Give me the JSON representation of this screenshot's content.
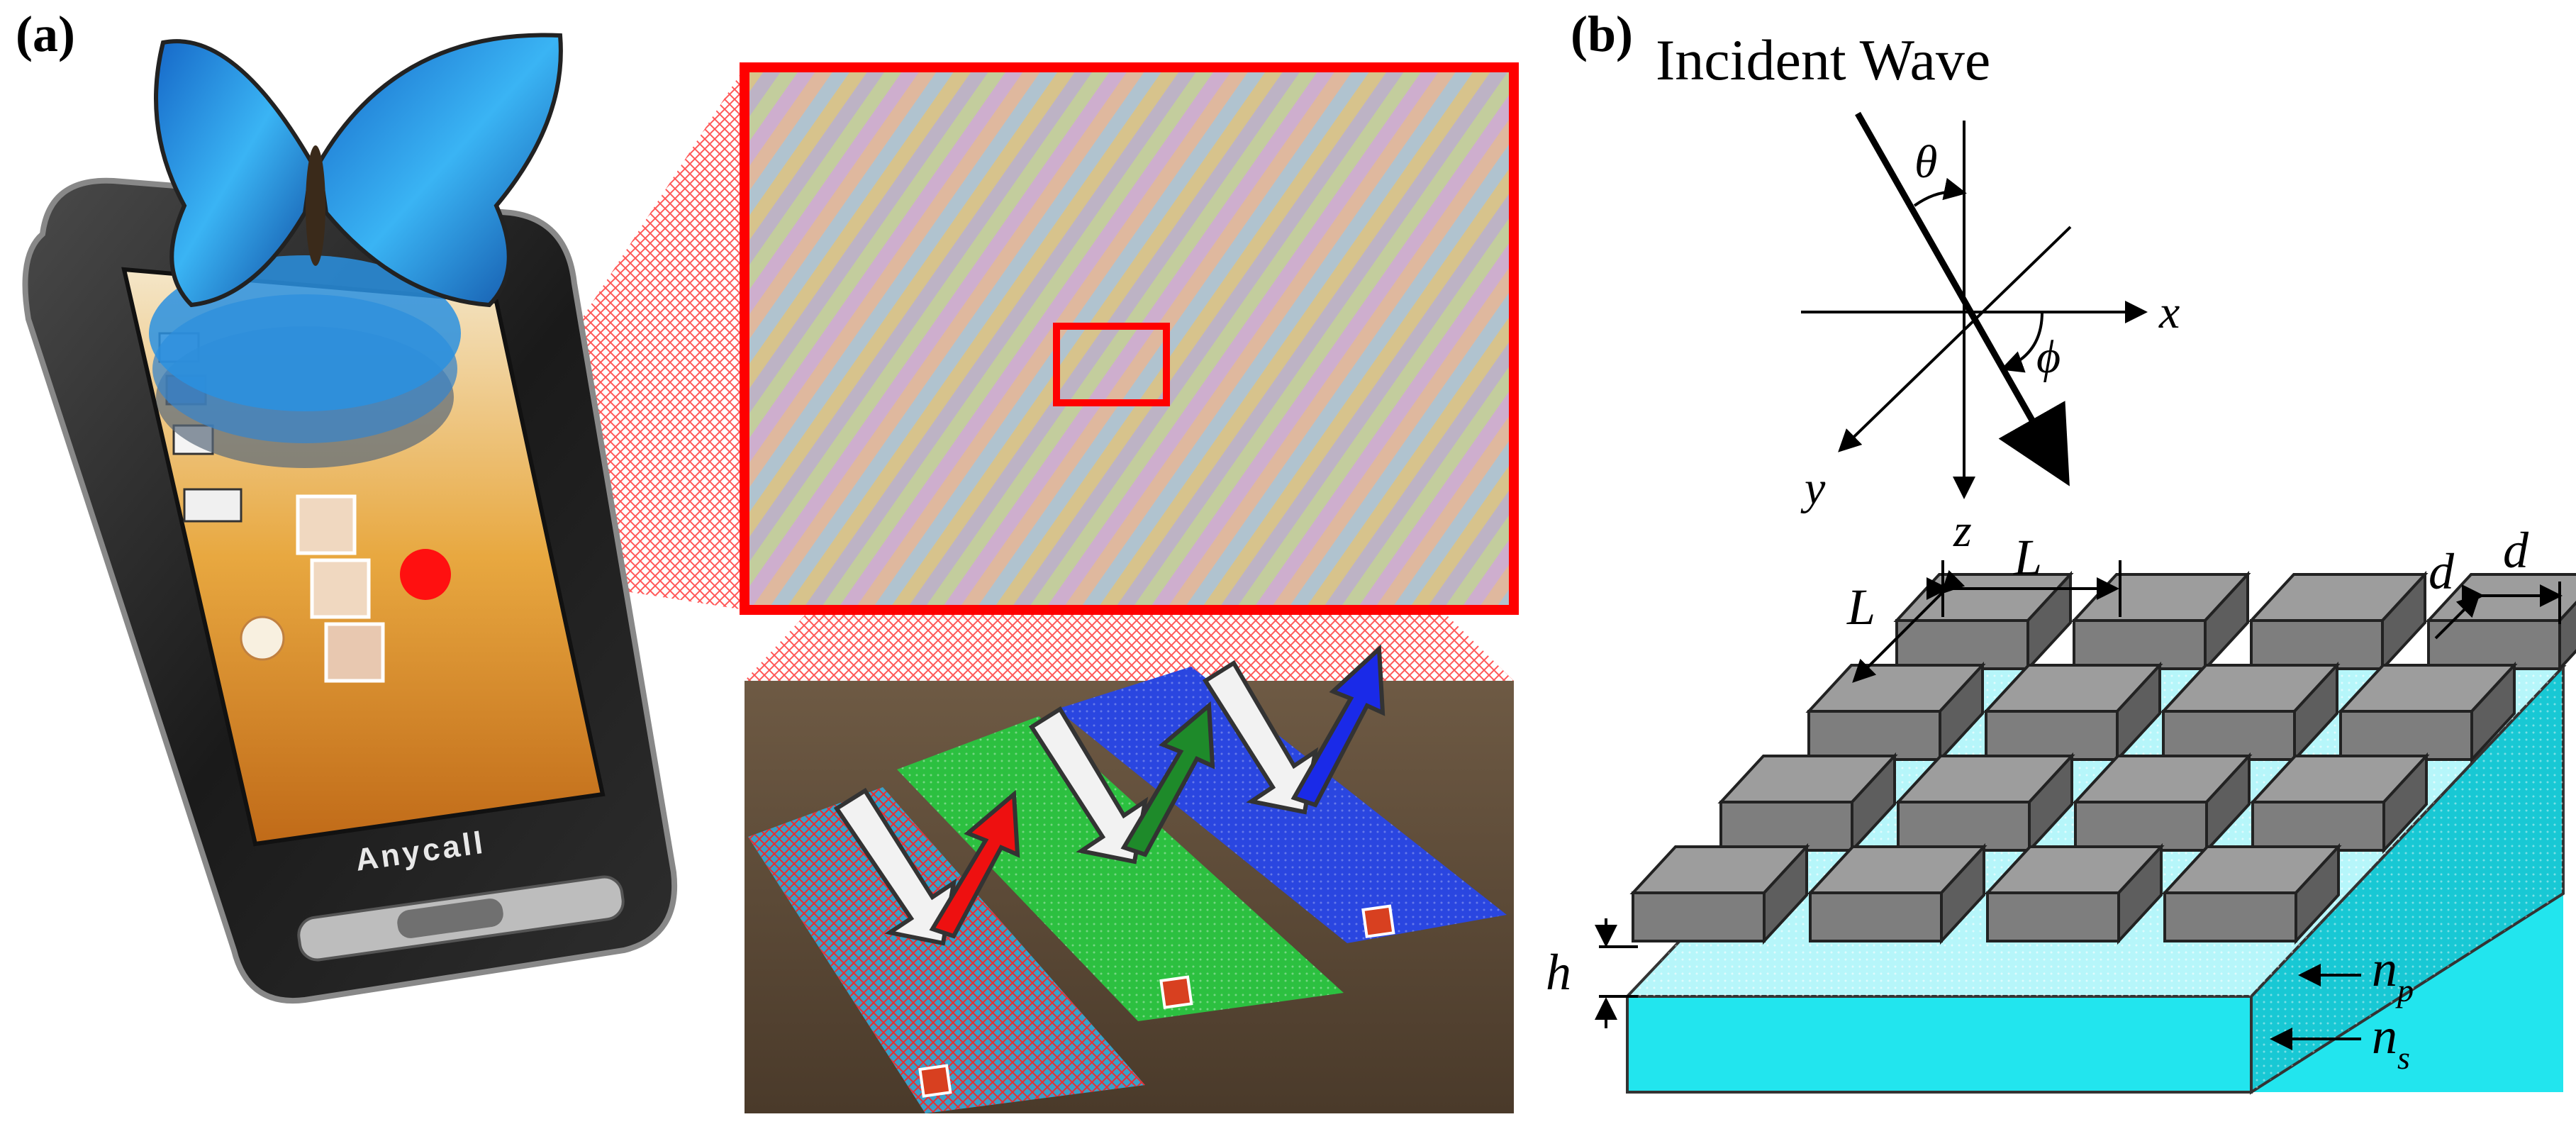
{
  "panel_a": {
    "label": "(a)",
    "phone_brand": "Anycall"
  },
  "panel_b": {
    "label": "(b)",
    "title": "Incident Wave",
    "symbols": {
      "theta": "θ",
      "phi": "ϕ",
      "x": "x",
      "y": "y",
      "z": "z",
      "L_horizontal": "L",
      "L_diagonal": "L",
      "d_left": "d",
      "d_right": "d",
      "h": "h",
      "n_p_base": "n",
      "n_p_sub": "p",
      "n_s_base": "n",
      "n_s_sub": "s"
    }
  },
  "colors": {
    "zoom_frame": "#ff0000",
    "substrate": "#22e5ee",
    "pillar_top": "#9d9d9d",
    "pillar_front": "#7e7e7e",
    "pillar_side": "#5e5e5e",
    "red_strip": "#e02020",
    "green_strip": "#1fa830",
    "blue_strip": "#2238d8",
    "butterfly": "#1f8fe0"
  }
}
